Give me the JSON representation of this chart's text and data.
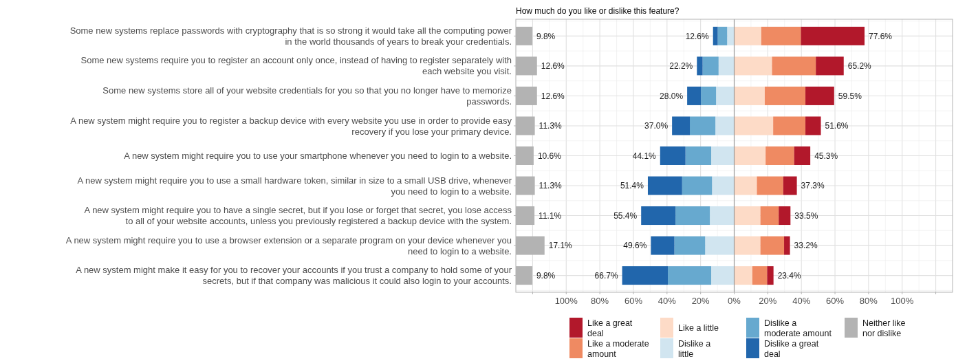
{
  "chart_data": [
    {
      "type": "bar",
      "orientation": "horizontal",
      "categories": [
        "Some new systems replace passwords with cryptography that is so strong it would take all the computing power in the world thousands of years to break your credentials.",
        "Some new systems require you to register an account only once, instead of having to register separately with each website you visit.",
        "Some new systems store all of your website credentials for you so that you no longer have to memorize passwords.",
        "A new system might require you to register a backup device with every website you use in order to provide easy recovery if you lose your primary device.",
        "A new system might require you to use your smartphone whenever you need to login to a website.",
        "A new system might require you to use a small hardware token, similar in size to a small USB drive, whenever you need to login to a website.",
        "A new system might require you to have a single secret, but if you lose or forget that secret, you lose access to all of your website accounts, unless you previously registered a backup device with the system.",
        "A new system might require you to use a browser extension or a separate program on your device whenever you need to login to a website.",
        "A new system might make it easy for you to recover your accounts if you trust a company to hold some of your secrets, but if that company was malicious it could also login to your accounts."
      ],
      "series": [
        {
          "name": "Neither like nor dislike",
          "color": "#b3b3b3",
          "values": [
            9.8,
            12.6,
            12.6,
            11.3,
            10.6,
            11.3,
            11.1,
            17.1,
            9.8
          ],
          "value_labels": [
            "9.8%",
            "12.6%",
            "12.6%",
            "11.3%",
            "10.6%",
            "11.3%",
            "11.1%",
            "17.1%",
            "9.8%"
          ]
        }
      ],
      "tick_labels": "y",
      "legend": "bottom"
    },
    {
      "type": "bar",
      "orientation": "horizontal",
      "stacked": true,
      "title": "How much do you like or dislike this feature?",
      "categories": [
        "Some new systems replace passwords with cryptography that is so strong it would take all the computing power in the world thousands of years to break your credentials.",
        "Some new systems require you to register an account only once, instead of having to register separately with each website you visit.",
        "Some new systems store all of your website credentials for you so that you no longer have to memorize passwords.",
        "A new system might require you to register a backup device with every website you use in order to provide easy recovery if you lose your primary device.",
        "A new system might require you to use your smartphone whenever you need to login to a website.",
        "A new system might require you to use a small hardware token, similar in size to a small USB drive, whenever you need to login to a website.",
        "A new system might require you to have a single secret, but if you lose or forget that secret, you lose access to all of your website accounts, unless you previously registered a backup device with the system.",
        "A new system might require you to use a browser extension or a separate program on your device whenever you need to login to a website.",
        "A new system might make it easy for you to recover your accounts if you trust a company to hold some of your secrets, but if that company was malicious it could also login to your accounts."
      ],
      "series": [
        {
          "name": "Dislike a little",
          "color": "#d1e5f0",
          "values": [
            -4.2,
            -9.3,
            -10.8,
            -11.2,
            -13.7,
            -13.2,
            -14.5,
            -17.3,
            -13.7
          ]
        },
        {
          "name": "Dislike a moderate amount",
          "color": "#67a9cf",
          "values": [
            -5.6,
            -9.5,
            -9.0,
            -15.2,
            -15.3,
            -17.8,
            -20.4,
            -18.3,
            -25.8
          ]
        },
        {
          "name": "Dislike a great deal",
          "color": "#2166ac",
          "values": [
            -2.8,
            -3.4,
            -8.2,
            -10.6,
            -15.1,
            -20.4,
            -20.5,
            -14.0,
            -27.2
          ]
        },
        {
          "name": "Like a little",
          "color": "#fddbc7",
          "values": [
            16.1,
            22.5,
            18.2,
            23.2,
            18.7,
            13.5,
            15.6,
            15.6,
            10.8
          ]
        },
        {
          "name": "Like a moderate amount",
          "color": "#ef8a62",
          "values": [
            23.6,
            26.1,
            24.2,
            19.2,
            17.0,
            15.7,
            10.9,
            14.1,
            8.8
          ]
        },
        {
          "name": "Like a great deal",
          "color": "#b2182b",
          "values": [
            37.9,
            16.6,
            17.1,
            9.2,
            9.6,
            8.1,
            7.0,
            3.5,
            3.8
          ]
        }
      ],
      "xlim": [
        -130,
        130
      ],
      "xticks": [
        {
          "value": -120,
          "label": null
        },
        {
          "value": -100,
          "label": "100%"
        },
        {
          "value": -80,
          "label": "80%"
        },
        {
          "value": -60,
          "label": "60%"
        },
        {
          "value": -40,
          "label": "40%"
        },
        {
          "value": -20,
          "label": "20%"
        },
        {
          "value": 0,
          "label": "0%"
        },
        {
          "value": 20,
          "label": "20%"
        },
        {
          "value": 40,
          "label": "40%"
        },
        {
          "value": 60,
          "label": "60%"
        },
        {
          "value": 80,
          "label": "80%"
        },
        {
          "value": 100,
          "label": "100%"
        },
        {
          "value": 120,
          "label": null
        }
      ],
      "tick_labels": "x",
      "grid": true,
      "legend": "bottom",
      "ref_lines": [
        {
          "axis": "x",
          "value": 0,
          "color": "#999999"
        }
      ],
      "annotations": [
        {
          "text": "12.6%",
          "x": -12.6,
          "y": "Some new systems replace passwords with cryptography that is so strong it would take all the computing power in the world thousands of years to break your credentials."
        },
        {
          "text": "77.6%",
          "x": 77.6,
          "y": "Some new systems replace passwords with cryptography that is so strong it would take all the computing power in the world thousands of years to break your credentials."
        },
        {
          "text": "22.2%",
          "x": -22.2,
          "y": "Some new systems require you to register an account only once, instead of having to register separately with each website you visit."
        },
        {
          "text": "65.2%",
          "x": 65.2,
          "y": "Some new systems require you to register an account only once, instead of having to register separately with each website you visit."
        },
        {
          "text": "28.0%",
          "x": -28.0,
          "y": "Some new systems store all of your website credentials for you so that you no longer have to memorize passwords."
        },
        {
          "text": "59.5%",
          "x": 59.5,
          "y": "Some new systems store all of your website credentials for you so that you no longer have to memorize passwords."
        },
        {
          "text": "37.0%",
          "x": -37.0,
          "y": "A new system might require you to register a backup device with every website you use in order to provide easy recovery if you lose your primary device."
        },
        {
          "text": "51.6%",
          "x": 51.6,
          "y": "A new system might require you to register a backup device with every website you use in order to provide easy recovery if you lose your primary device."
        },
        {
          "text": "44.1%",
          "x": -44.1,
          "y": "A new system might require you to use your smartphone whenever you need to login to a website."
        },
        {
          "text": "45.3%",
          "x": 45.3,
          "y": "A new system might require you to use your smartphone whenever you need to login to a website."
        },
        {
          "text": "51.4%",
          "x": -51.4,
          "y": "A new system might require you to use a small hardware token, similar in size to a small USB drive, whenever you need to login to a website."
        },
        {
          "text": "37.3%",
          "x": 37.3,
          "y": "A new system might require you to use a small hardware token, similar in size to a small USB drive, whenever you need to login to a website."
        },
        {
          "text": "55.4%",
          "x": -55.4,
          "y": "A new system might require you to have a single secret, but if you lose or forget that secret, you lose access to all of your website accounts, unless you previously registered a backup device with the system."
        },
        {
          "text": "33.5%",
          "x": 33.5,
          "y": "A new system might require you to have a single secret, but if you lose or forget that secret, you lose access to all of your website accounts, unless you previously registered a backup device with the system."
        },
        {
          "text": "49.6%",
          "x": -49.6,
          "y": "A new system might require you to use a browser extension or a separate program on your device whenever you need to login to a website."
        },
        {
          "text": "33.2%",
          "x": 33.2,
          "y": "A new system might require you to use a browser extension or a separate program on your device whenever you need to login to a website."
        },
        {
          "text": "66.7%",
          "x": -66.7,
          "y": "A new system might make it easy for you to recover your accounts if you trust a company to hold some of your secrets, but if that company was malicious it could also login to your accounts."
        },
        {
          "text": "23.4%",
          "x": 23.4,
          "y": "A new system might make it easy for you to recover your accounts if you trust a company to hold some of your secrets, but if that company was malicious it could also login to your accounts."
        }
      ]
    }
  ]
}
